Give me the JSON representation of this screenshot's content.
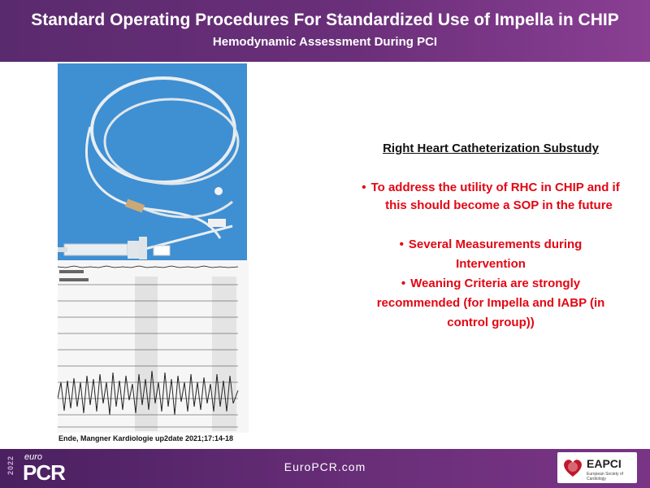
{
  "header": {
    "title": "Standard Operating Procedures For Standardized Use of Impella in CHIP",
    "subtitle": "Hemodynamic Assessment During PCI"
  },
  "figure": {
    "caption": "Ende, Mangner Kardiologie up2date 2021;17:14-18"
  },
  "content": {
    "heading": "Right Heart Catheterization Substudy",
    "bullets": [
      "To address the utility of RHC in CHIP and if",
      "this should become a SOP in the future",
      "Several Measurements during",
      "Intervention",
      "Weaning Criteria are strongly",
      "recommended (for Impella and IABP (in",
      "control group))"
    ],
    "bullet_char": "•",
    "text_color": "#e30613"
  },
  "footer": {
    "year": "2022",
    "logo_prefix": "euro",
    "logo": "PCR",
    "url": "EuroPCR.com",
    "partner": "EAPCI",
    "partner_sub": "European Society of Cardiology"
  },
  "colors": {
    "header_purple": "#6b2f7a",
    "accent_red": "#e30613"
  }
}
